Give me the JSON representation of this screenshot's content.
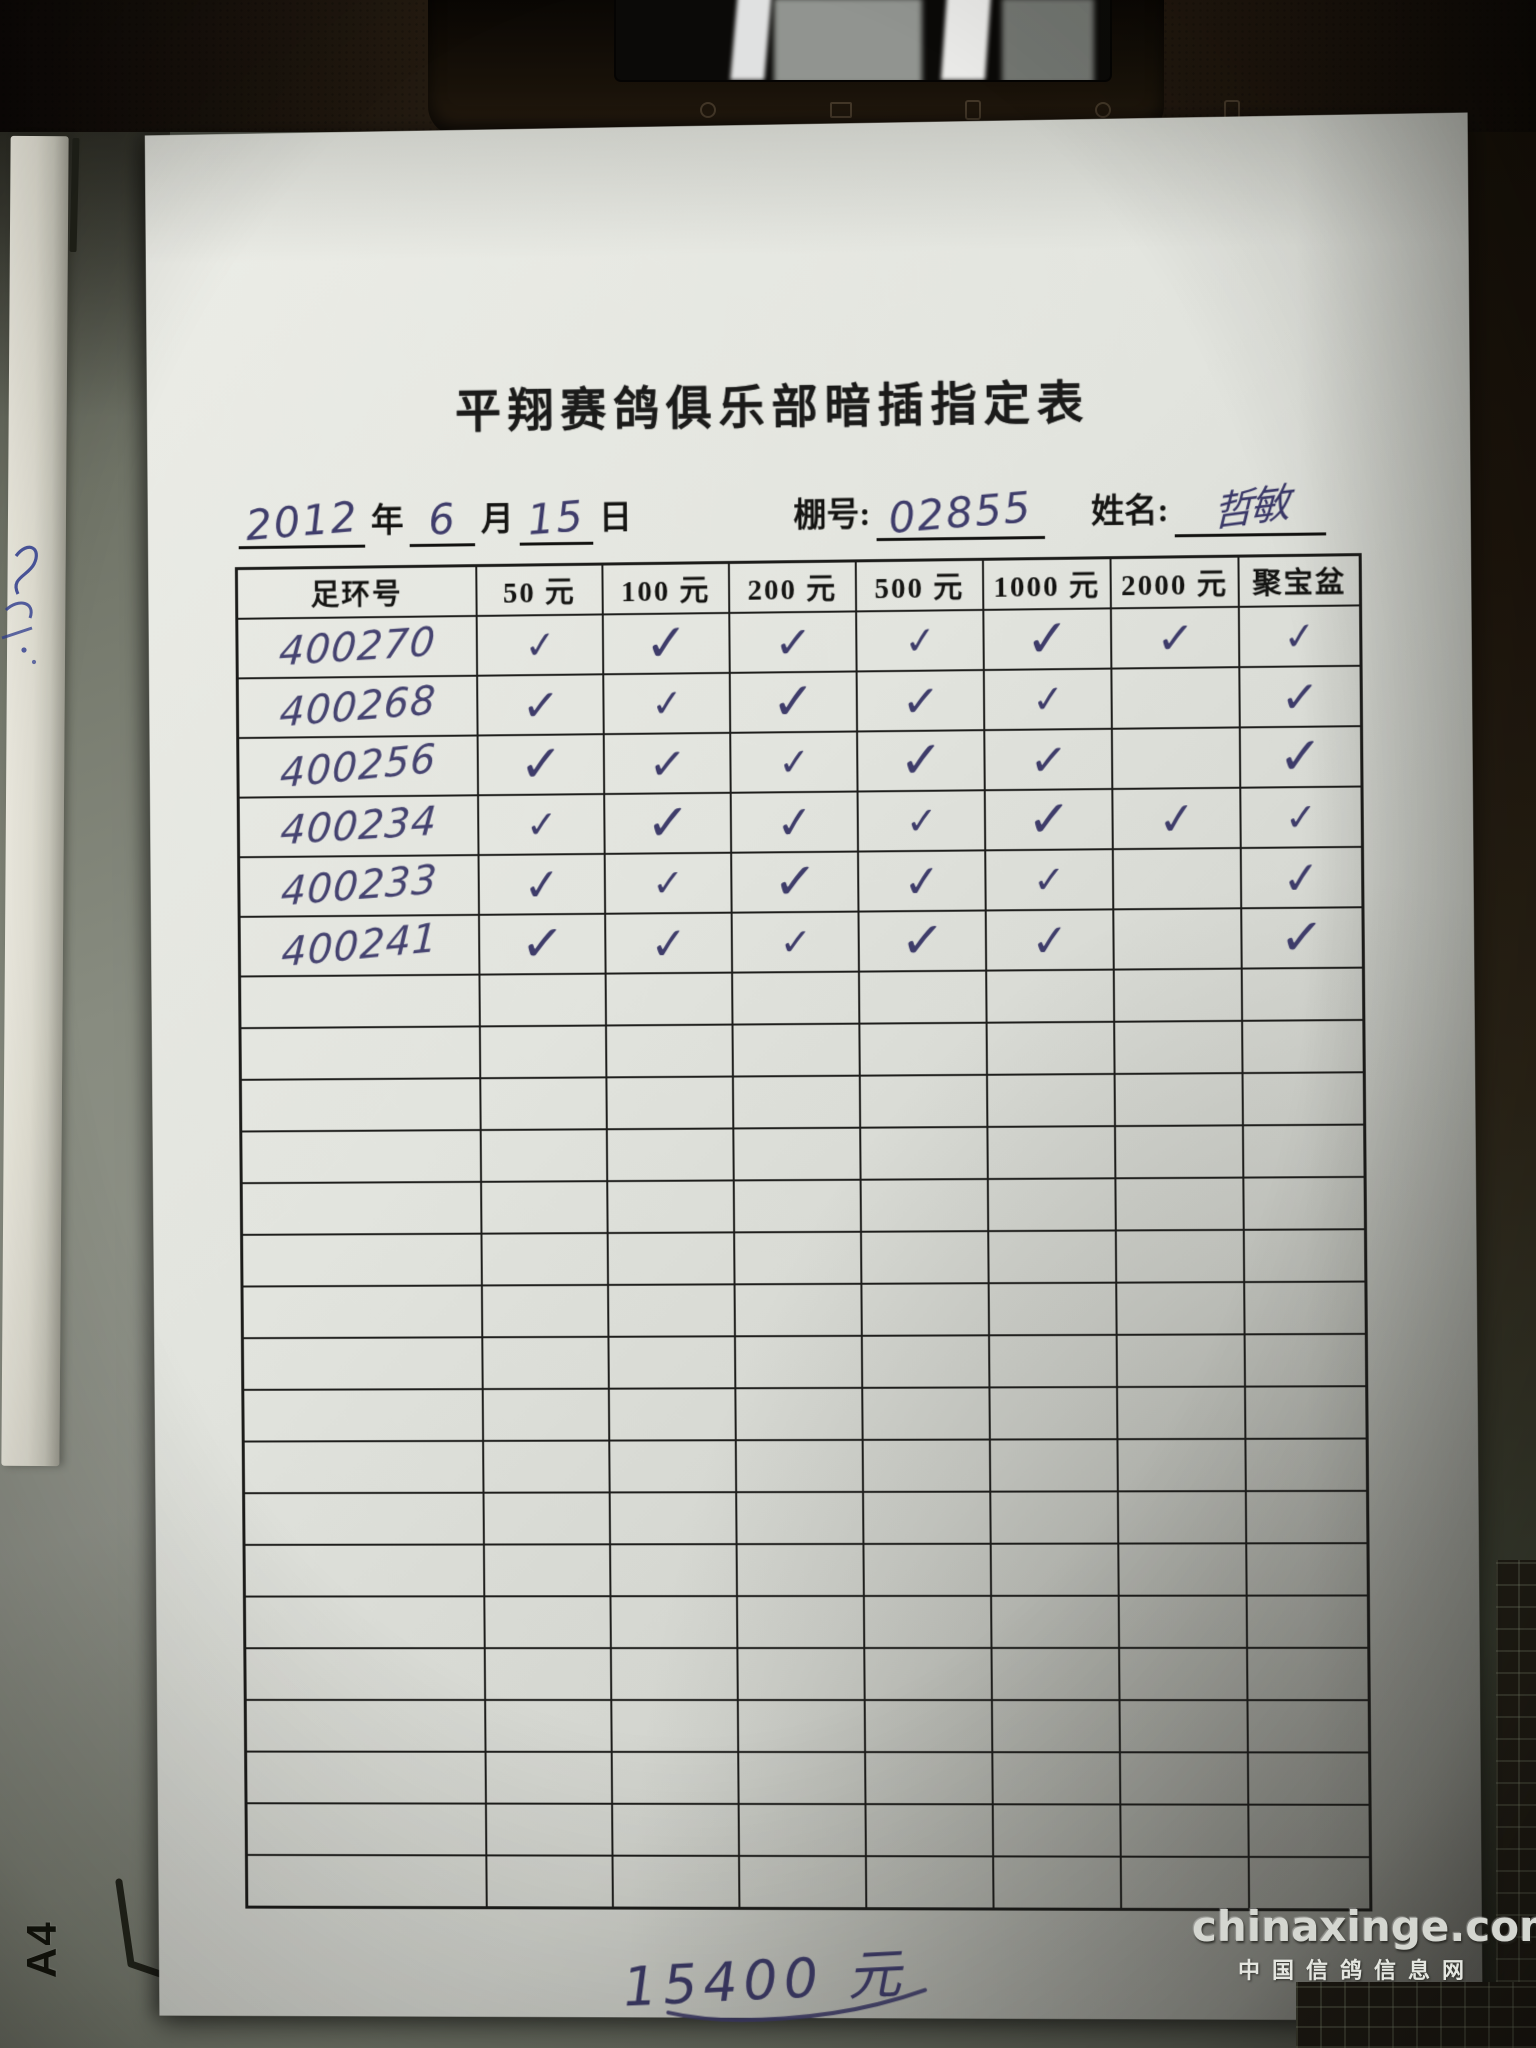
{
  "form": {
    "title": "平翔赛鸽俱乐部暗插指定表",
    "date_line": {
      "year_value": "2012",
      "year_label": "年",
      "month_value": "6",
      "month_label": "月",
      "day_value": "15",
      "day_label": "日",
      "shed_label": "棚号:",
      "shed_value": "02855",
      "name_label": "姓名:",
      "name_value": "哲敏"
    },
    "table": {
      "check_glyph": "✓",
      "headers": [
        "足环号",
        "50 元",
        "100 元",
        "200 元",
        "500 元",
        "1000 元",
        "2000 元",
        "聚宝盆"
      ],
      "rows": [
        {
          "ring": "400270",
          "checks": [
            1,
            1,
            1,
            1,
            1,
            1,
            1
          ]
        },
        {
          "ring": "400268",
          "checks": [
            1,
            1,
            1,
            1,
            1,
            0,
            1
          ]
        },
        {
          "ring": "400256",
          "checks": [
            1,
            1,
            1,
            1,
            1,
            0,
            1
          ]
        },
        {
          "ring": "400234",
          "checks": [
            1,
            1,
            1,
            1,
            1,
            1,
            1
          ]
        },
        {
          "ring": "400233",
          "checks": [
            1,
            1,
            1,
            1,
            1,
            0,
            1
          ]
        },
        {
          "ring": "400241",
          "checks": [
            1,
            1,
            1,
            1,
            1,
            0,
            1
          ]
        }
      ],
      "empty_row_count": 18
    },
    "total_handwritten": "15400 元"
  },
  "surroundings": {
    "paper_size_mark": "A4",
    "watermark_line1": "chinaxinge.com",
    "watermark_line2": "中国信鸽信息网"
  }
}
